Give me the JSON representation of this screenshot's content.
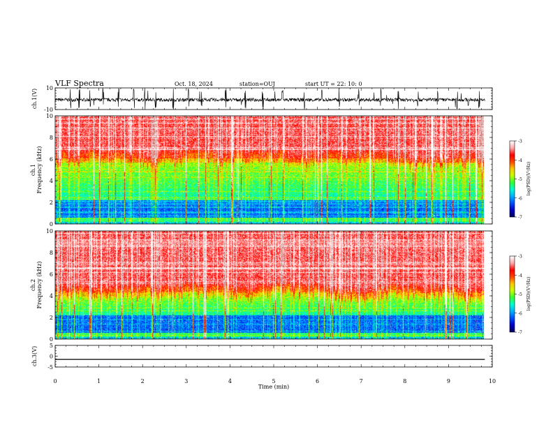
{
  "header": {
    "title": "VLF Spectra",
    "date": "Oct. 18, 2024",
    "station": "station=OUJ",
    "start": "start  UT  =  22: 10: 0"
  },
  "chart_data": [
    {
      "type": "line",
      "id": "ch1-waveform",
      "ylabel": "ch.1(V)",
      "ylim": [
        -10,
        10
      ],
      "yticks": [
        "10",
        "-10"
      ],
      "xlim": [
        0,
        10
      ],
      "description_baseline": -1,
      "burst_times_min": [
        0.35,
        0.55,
        0.8,
        1.1,
        1.45,
        1.8,
        2.05,
        2.3,
        2.7,
        3.05,
        3.35,
        3.9,
        4.35,
        4.75,
        5.2,
        5.7,
        6.1,
        6.5,
        6.95,
        7.45,
        7.85,
        8.3,
        8.75,
        9.2,
        9.45,
        9.7
      ]
    },
    {
      "type": "heatmap",
      "id": "ch1-spectrogram",
      "ylabel": "ch.1\nFrequency  (kHz)",
      "ylabel_line1": "ch.1",
      "ylabel_line2": "Frequency  (kHz)",
      "ylim": [
        0,
        10
      ],
      "yticks": [
        "0",
        "2",
        "4",
        "6",
        "8",
        "10"
      ],
      "xlim": [
        0,
        9.83
      ],
      "colorbar": {
        "label": "log(PSD)(V²/Hz)",
        "ticks": [
          "-3",
          "-4",
          "-5",
          "-6",
          "-7"
        ],
        "range": [
          -7,
          -3
        ]
      }
    },
    {
      "type": "heatmap",
      "id": "ch2-spectrogram",
      "ylabel_line1": "ch.2",
      "ylabel_line2": "Frequency  (kHz)",
      "ylim": [
        0,
        10
      ],
      "yticks": [
        "0",
        "2",
        "4",
        "6",
        "8",
        "10"
      ],
      "xlim": [
        0,
        9.83
      ],
      "colorbar": {
        "label": "log(PSD)(V²/Hz)",
        "ticks": [
          "-3",
          "-4",
          "-5",
          "-6",
          "-7"
        ],
        "range": [
          -7,
          -3
        ]
      }
    },
    {
      "type": "line",
      "id": "ch3-waveform",
      "ylabel": "ch.3(V)",
      "ylim": [
        -5,
        5
      ],
      "yticks": [
        "5",
        "0",
        "-5"
      ],
      "x": [
        0,
        9.83
      ],
      "y": [
        -1.5,
        -1.5
      ]
    }
  ],
  "xaxis": {
    "label": "Time  (min)",
    "ticks": [
      "0",
      "1",
      "2",
      "3",
      "4",
      "5",
      "6",
      "7",
      "8",
      "9",
      "10"
    ],
    "range": [
      0,
      10
    ]
  },
  "colors": {
    "frame": "#000000",
    "colormap": [
      "#000060",
      "#0000c8",
      "#0050ff",
      "#00b4ff",
      "#00ffd2",
      "#32ff32",
      "#c8ff00",
      "#ffc800",
      "#ff4600",
      "#ff0000",
      "#ffa8a8",
      "#ffffff"
    ]
  }
}
